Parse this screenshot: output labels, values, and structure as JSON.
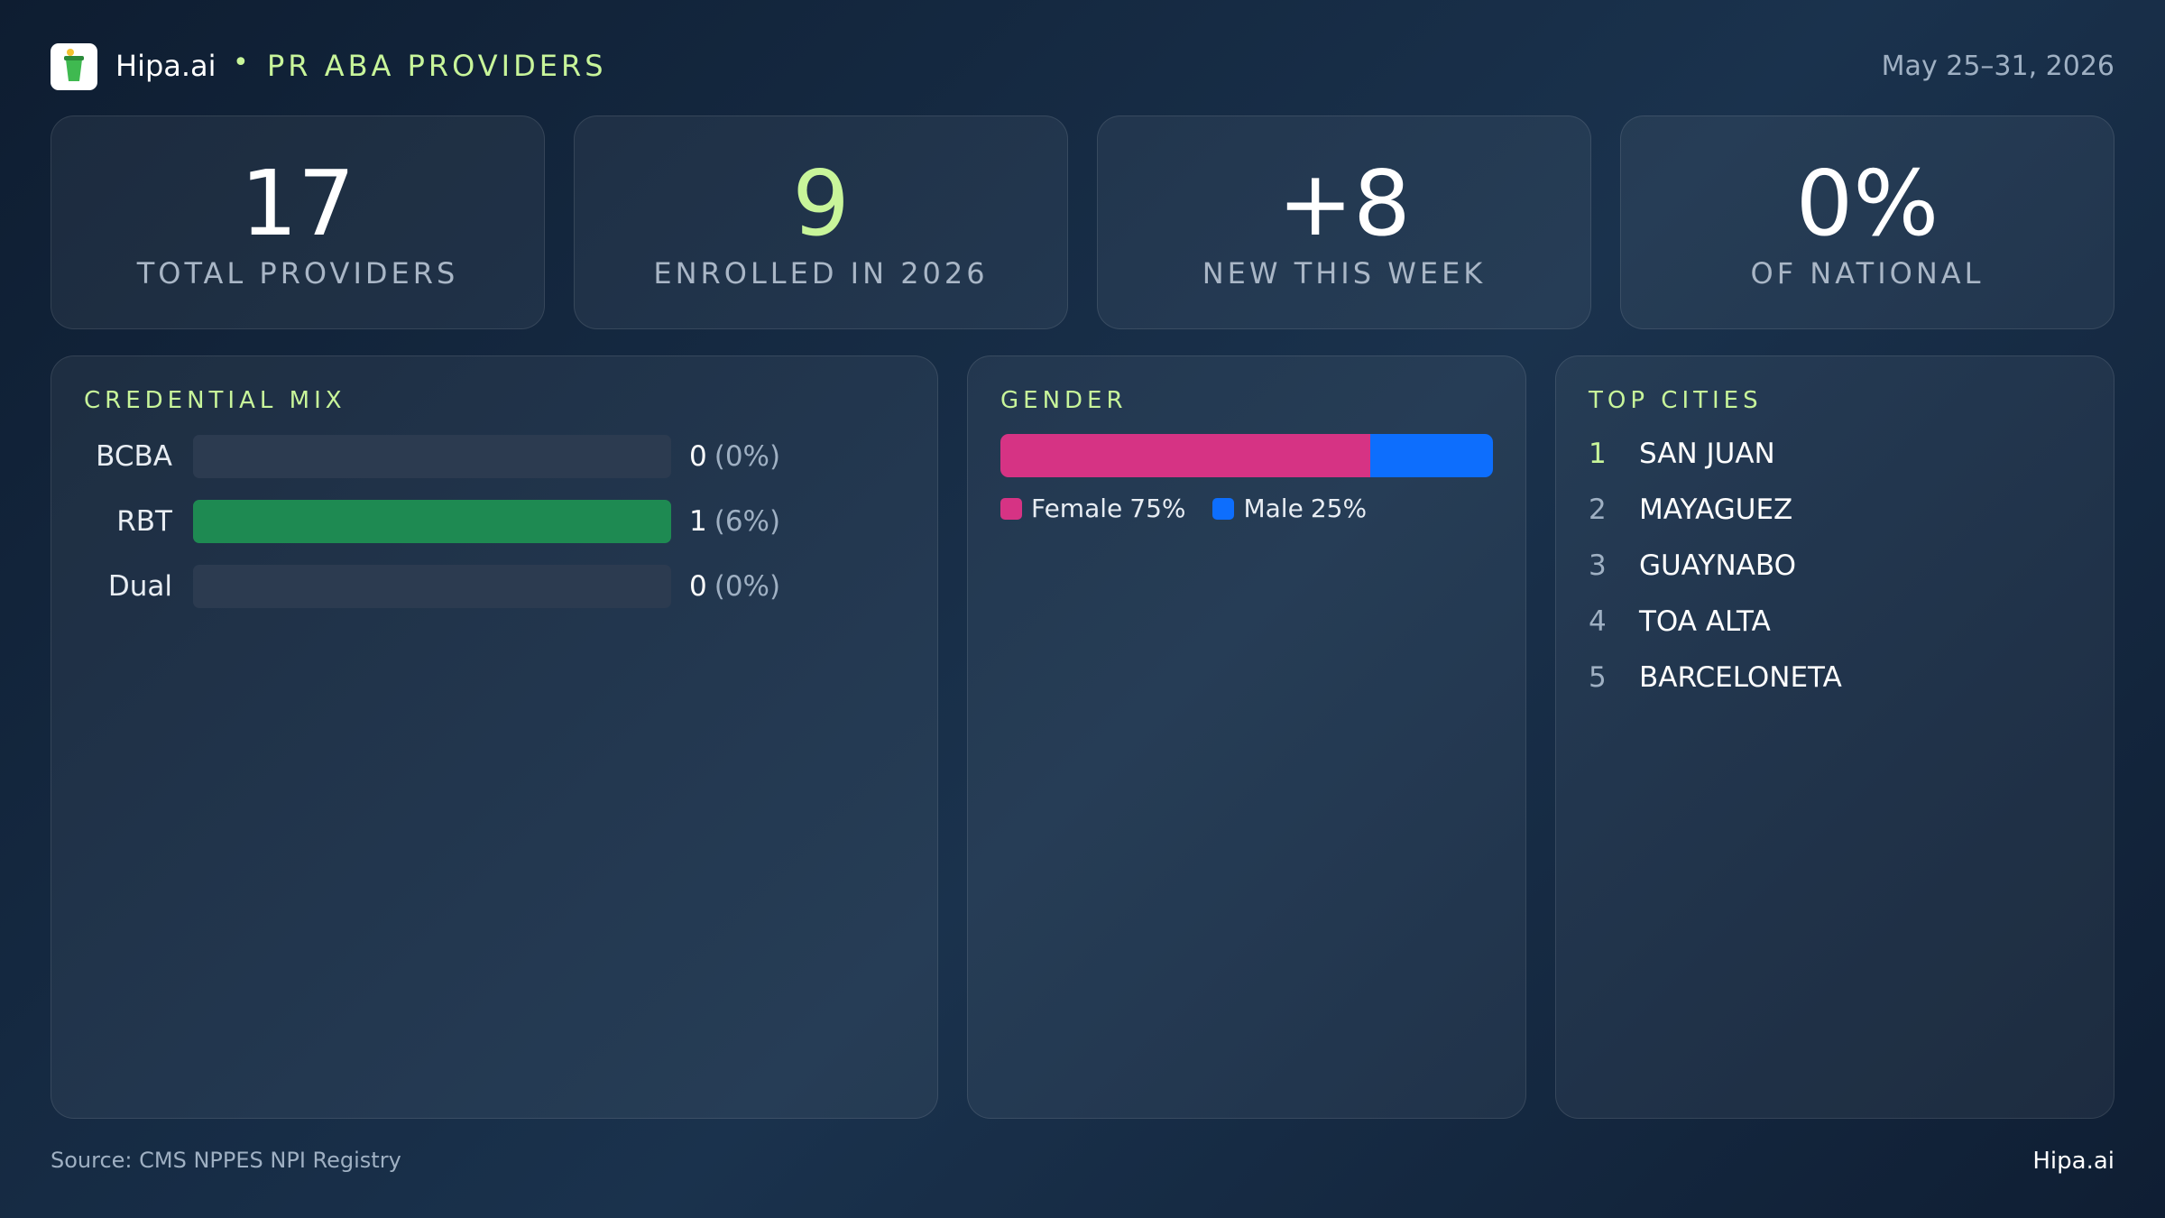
{
  "header": {
    "brand": "Hipa.ai",
    "title": "PR ABA PROVIDERS",
    "date": "May 25–31, 2026"
  },
  "kpis": [
    {
      "value": "17",
      "label": "TOTAL PROVIDERS"
    },
    {
      "value": "9",
      "label": "ENROLLED IN 2026"
    },
    {
      "value": "+8",
      "label": "NEW THIS WEEK"
    },
    {
      "value": "0%",
      "label": "OF NATIONAL"
    }
  ],
  "credential_mix": {
    "type": "bar",
    "title": "CREDENTIAL MIX",
    "categories": [
      "BCBA",
      "RBT",
      "Dual"
    ],
    "values": [
      0,
      1,
      0
    ],
    "percents": [
      0,
      6,
      0
    ],
    "percent_labels": [
      "(0%)",
      "(6%)",
      "(0%)"
    ],
    "xlim": [
      0,
      1
    ],
    "color": "#1e8a52"
  },
  "gender": {
    "type": "stacked-bar",
    "title": "GENDER",
    "series": [
      {
        "name": "Female",
        "value": 75,
        "label": "75%",
        "color": "#d63384"
      },
      {
        "name": "Male",
        "value": 25,
        "label": "25%",
        "color": "#0d6efd"
      }
    ]
  },
  "top_cities": {
    "title": "TOP CITIES",
    "items": [
      {
        "rank": "1",
        "name": "SAN JUAN"
      },
      {
        "rank": "2",
        "name": "MAYAGUEZ"
      },
      {
        "rank": "3",
        "name": "GUAYNABO"
      },
      {
        "rank": "4",
        "name": "TOA ALTA"
      },
      {
        "rank": "5",
        "name": "BARCELONETA"
      }
    ]
  },
  "footer": {
    "source": "Source: CMS NPPES NPI Registry",
    "brand": "Hipa.ai"
  }
}
